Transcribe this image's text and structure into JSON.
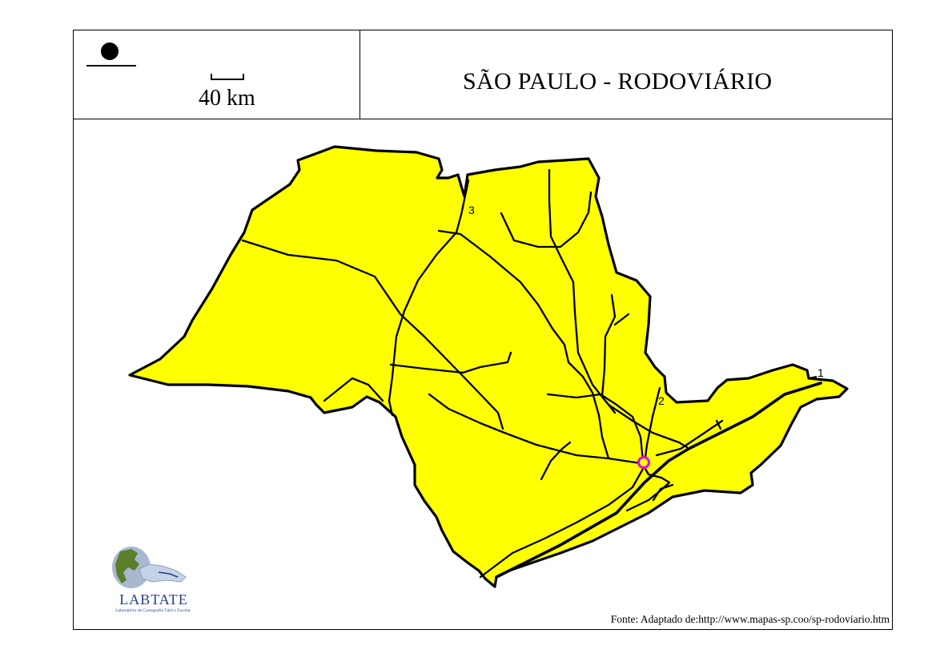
{
  "header": {
    "title": "SÃO PAULO - RODOVIÁRIO",
    "scale_label": "40 km"
  },
  "map": {
    "fill_color": "#ffff00",
    "outline_color": "#000000",
    "city_marker_color": "#e600e6",
    "road_labels": [
      "1",
      "2",
      "3"
    ]
  },
  "logo": {
    "name": "LABTATE",
    "subtitle": "Laboratório de Cartografia Tátil e Escolar",
    "color": "#1f3f8f"
  },
  "footer": {
    "source_prefix": "Fonte: Adaptado de:",
    "source_url": "http://www.mapas-sp.coo/sp-rodoviario.htm"
  }
}
